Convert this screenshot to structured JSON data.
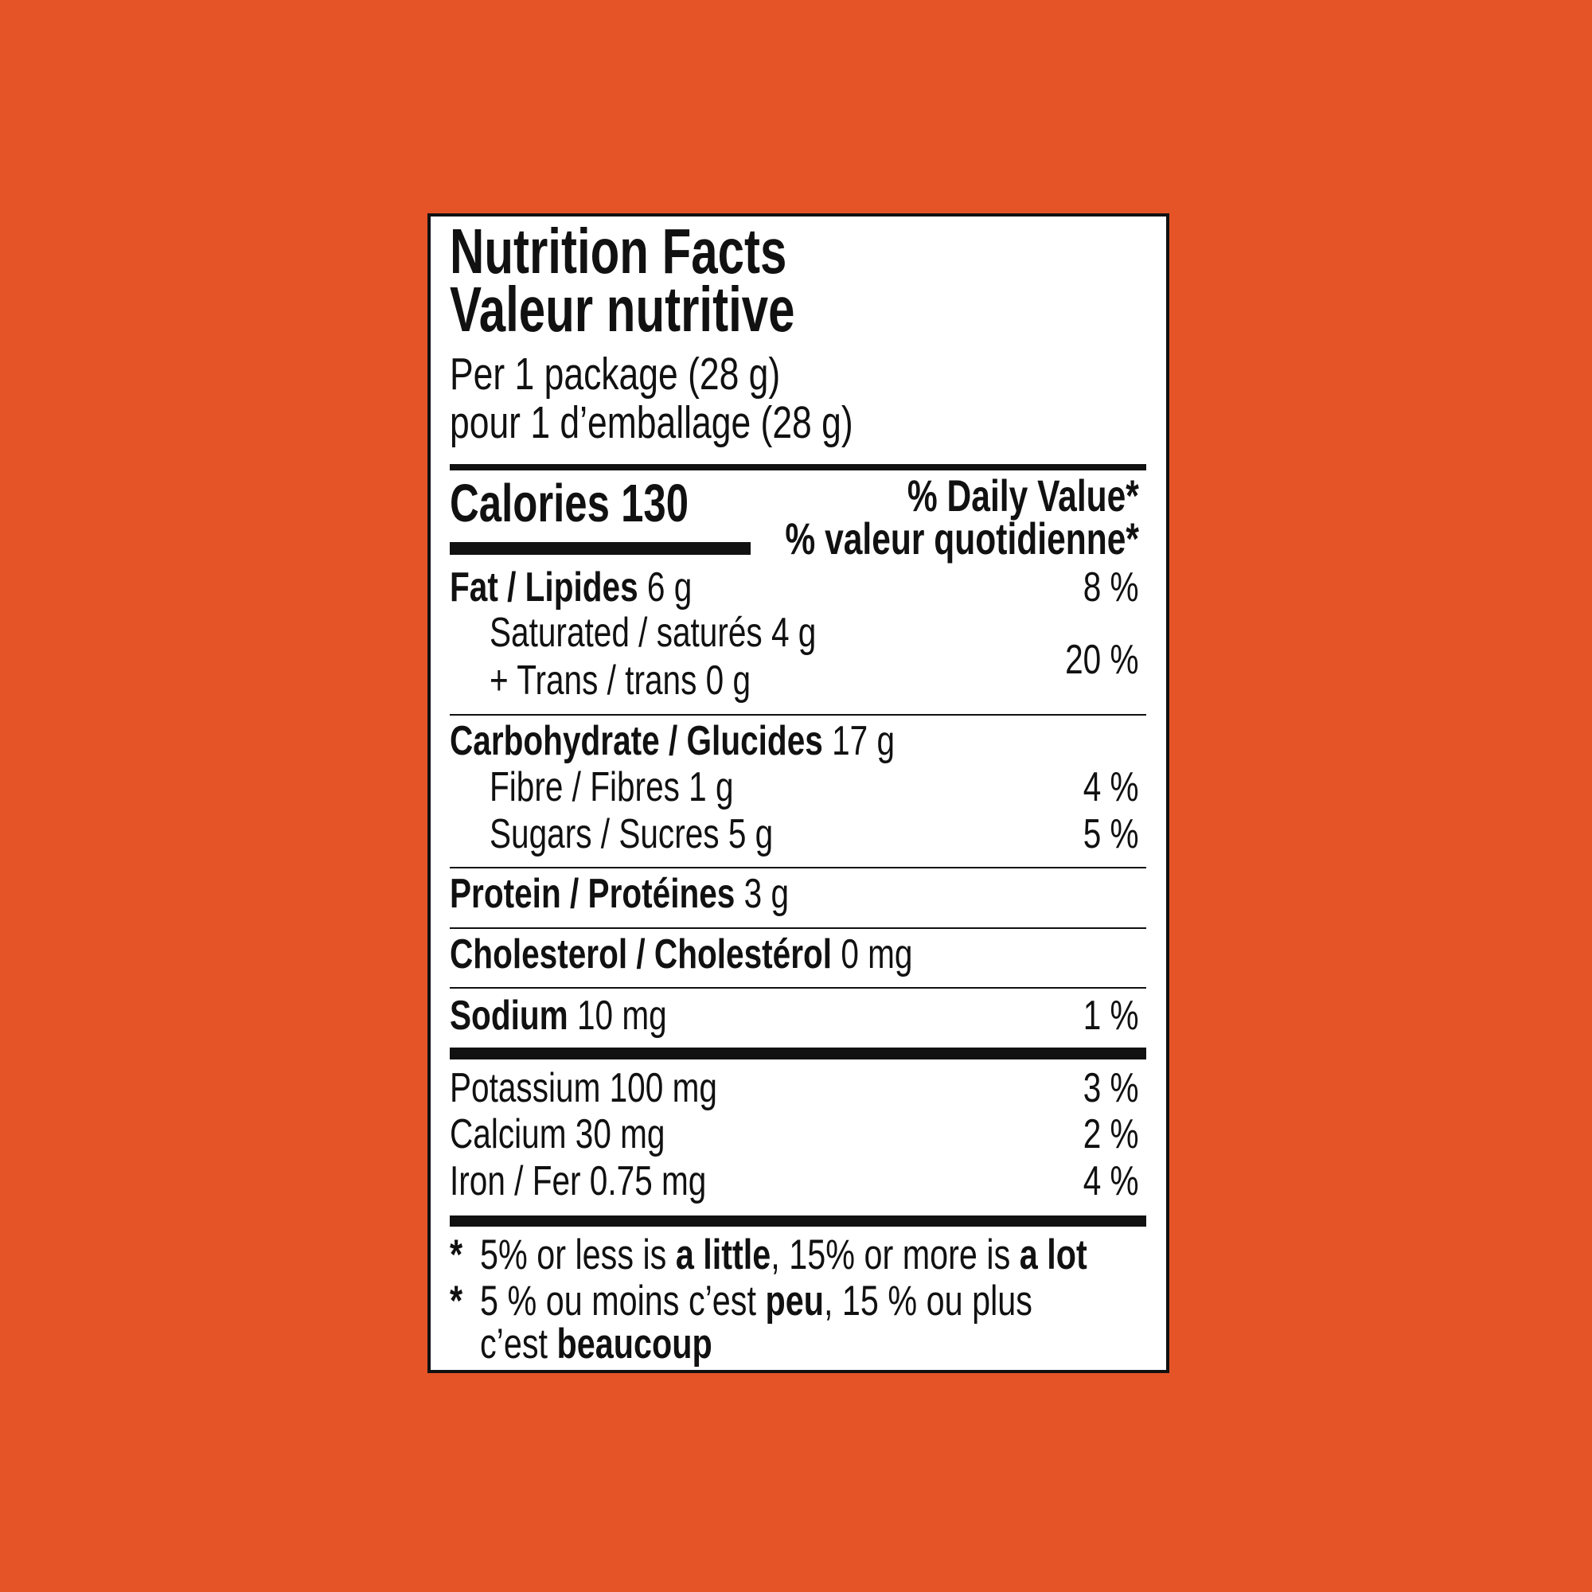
{
  "colors": {
    "background": "#E55427",
    "label": "#FFFFFF",
    "ink": "#111111"
  },
  "title_en": "Nutrition Facts",
  "title_fr": "Valeur nutritive",
  "serving_en": "Per 1 package (28 g)",
  "serving_fr": "pour 1 d’emballage (28 g)",
  "calories": "Calories 130",
  "dv_en": "% Daily Value*",
  "dv_fr": "% valeur quotidienne*",
  "rows": {
    "fat": {
      "label": "Fat / Lipides",
      "amount": " 6 g",
      "dv": "8 %"
    },
    "saturated": {
      "label": "Saturated / saturés 4 g"
    },
    "trans": {
      "label": "+ Trans / trans 0 g",
      "dv": "20 %"
    },
    "carb": {
      "label": "Carbohydrate / Glucides",
      "amount": " 17 g"
    },
    "fibre": {
      "label": "Fibre / Fibres 1 g",
      "dv": "4 %"
    },
    "sugars": {
      "label": "Sugars / Sucres 5 g",
      "dv": "5 %"
    },
    "protein": {
      "label": "Protein / Protéines",
      "amount": " 3 g"
    },
    "cholesterol": {
      "label": "Cholesterol / Cholestérol",
      "amount": " 0 mg"
    },
    "sodium": {
      "label": "Sodium",
      "amount": " 10 mg",
      "dv": "1 %"
    },
    "potassium": {
      "label": "Potassium 100 mg",
      "dv": "3 %"
    },
    "calcium": {
      "label": "Calcium 30 mg",
      "dv": "2 %"
    },
    "iron": {
      "label": "Iron / Fer 0.75 mg",
      "dv": "4 %"
    }
  },
  "footnote": {
    "star": "*",
    "en": [
      "5% or less is ",
      "a little",
      ", 15% or more is ",
      "a lot"
    ],
    "fr": [
      "5 % ou moins c’est ",
      "peu",
      ", 15 % ou plus"
    ],
    "fr2": [
      "c’est ",
      "beaucoup"
    ]
  }
}
